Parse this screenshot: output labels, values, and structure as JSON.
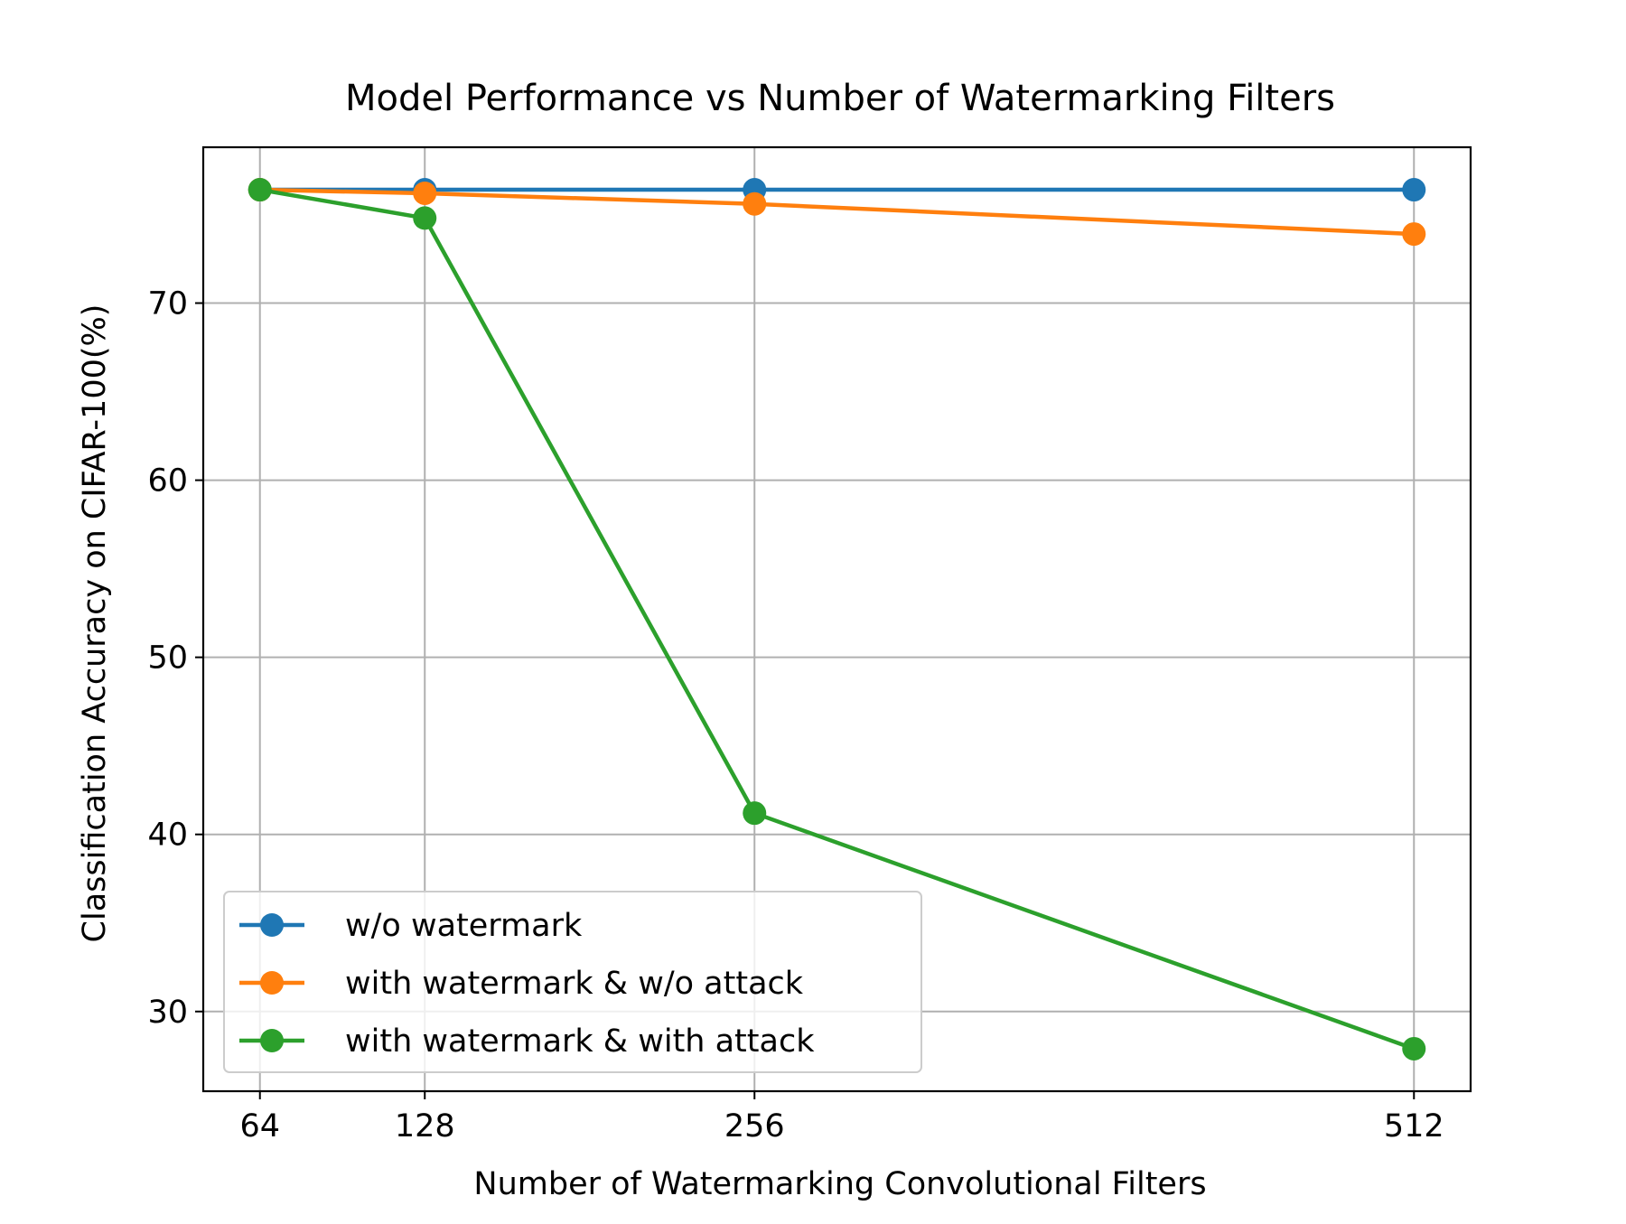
{
  "chart_data": {
    "type": "line",
    "title": "Model Performance vs Number of Watermarking Filters",
    "xlabel": "Number of Watermarking Convolutional Filters",
    "ylabel": "Classification Accuracy on CIFAR-100(%)",
    "x": [
      64,
      128,
      256,
      512
    ],
    "x_tick_labels": [
      "64",
      "128",
      "256",
      "512"
    ],
    "y_ticks": [
      30,
      40,
      50,
      60,
      70
    ],
    "y_tick_labels": [
      "30",
      "40",
      "50",
      "60",
      "70"
    ],
    "xlim": [
      42,
      534
    ],
    "ylim": [
      25.5,
      78.8
    ],
    "grid": true,
    "legend_position": "lower-left",
    "series": [
      {
        "name": "w/o watermark",
        "color": "#1f77b4",
        "values": [
          76.4,
          76.4,
          76.4,
          76.4
        ]
      },
      {
        "name": "with watermark & w/o attack",
        "color": "#ff7f0e",
        "values": [
          76.4,
          76.2,
          75.6,
          73.9
        ]
      },
      {
        "name": "with watermark & with attack",
        "color": "#2ca02c",
        "values": [
          76.4,
          74.8,
          41.2,
          27.9
        ]
      }
    ]
  }
}
